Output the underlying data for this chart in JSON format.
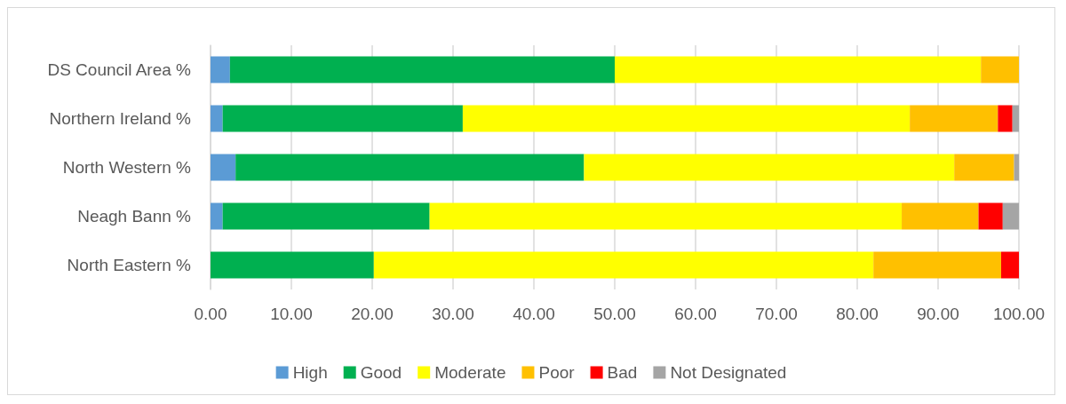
{
  "chart_data": {
    "type": "bar",
    "orientation": "horizontal",
    "stacked": true,
    "categories": [
      "DS Council Area %",
      "Northern Ireland %",
      "North Western %",
      "Neagh Bann %",
      "North Eastern %"
    ],
    "series": [
      {
        "name": "High",
        "color": "#5b9bd5",
        "values": [
          2.4,
          1.5,
          3.1,
          1.5,
          0
        ]
      },
      {
        "name": "Good",
        "color": "#00b050",
        "values": [
          47.6,
          29.7,
          43.1,
          25.6,
          20.2
        ]
      },
      {
        "name": "Moderate",
        "color": "#ffff00",
        "values": [
          45.3,
          55.3,
          45.8,
          58.4,
          61.8
        ]
      },
      {
        "name": "Poor",
        "color": "#ffc000",
        "values": [
          4.7,
          10.9,
          7.4,
          9.5,
          15.8
        ]
      },
      {
        "name": "Bad",
        "color": "#ff0000",
        "values": [
          0,
          1.8,
          0,
          3.0,
          2.2
        ]
      },
      {
        "name": "Not Designated",
        "color": "#a5a5a5",
        "values": [
          0,
          0.8,
          0.6,
          2.0,
          0
        ]
      }
    ],
    "xlim": [
      0,
      100
    ],
    "xticks": [
      {
        "value": 0,
        "label": "0.00"
      },
      {
        "value": 10,
        "label": "10.00"
      },
      {
        "value": 20,
        "label": "20.00"
      },
      {
        "value": 30,
        "label": "30.00"
      },
      {
        "value": 40,
        "label": "40.00"
      },
      {
        "value": 50,
        "label": "50.00"
      },
      {
        "value": 60,
        "label": "60.00"
      },
      {
        "value": 70,
        "label": "70.00"
      },
      {
        "value": 80,
        "label": "80.00"
      },
      {
        "value": 90,
        "label": "90.00"
      },
      {
        "value": 100,
        "label": "100.00"
      }
    ],
    "grid": "x",
    "legend": "bottom"
  }
}
